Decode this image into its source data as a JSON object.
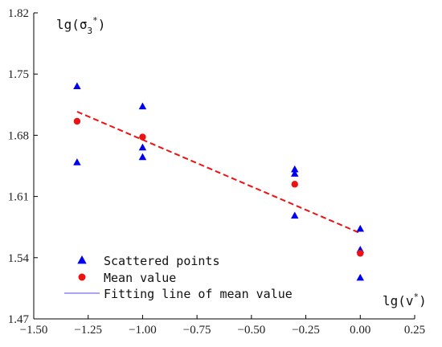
{
  "chart_data": {
    "type": "scatter",
    "xlabel": "lg(v*)",
    "ylabel": "lg(σ₃*)",
    "xlim": [
      -1.5,
      0.25
    ],
    "ylim": [
      1.47,
      1.82
    ],
    "xticks": [
      -1.5,
      -1.25,
      -1.0,
      -0.75,
      -0.5,
      -0.25,
      0.0,
      0.25
    ],
    "xtick_labels": [
      "−1.50",
      "−1.25",
      "−1.00",
      "−0.75",
      "−0.50",
      "−0.25",
      "0.00",
      "0.25"
    ],
    "yticks": [
      1.47,
      1.54,
      1.61,
      1.68,
      1.75,
      1.82
    ],
    "ytick_labels": [
      "1.47",
      "1.54",
      "1.61",
      "1.68",
      "1.75",
      "1.82"
    ],
    "grid": false,
    "legend_position": "bottom-left",
    "series": [
      {
        "name": "Scattered points",
        "marker": "triangle",
        "color": "#0000ee",
        "points": [
          {
            "x": -1.301,
            "y": 1.736
          },
          {
            "x": -1.301,
            "y": 1.649
          },
          {
            "x": -1.0,
            "y": 1.713
          },
          {
            "x": -1.0,
            "y": 1.666
          },
          {
            "x": -1.0,
            "y": 1.655
          },
          {
            "x": -0.301,
            "y": 1.641
          },
          {
            "x": -0.301,
            "y": 1.636
          },
          {
            "x": -0.301,
            "y": 1.588
          },
          {
            "x": 0.0,
            "y": 1.573
          },
          {
            "x": 0.0,
            "y": 1.549
          },
          {
            "x": 0.0,
            "y": 1.517
          }
        ]
      },
      {
        "name": "Mean value",
        "marker": "circle",
        "color": "#ee1111",
        "points": [
          {
            "x": -1.301,
            "y": 1.696
          },
          {
            "x": -1.0,
            "y": 1.678
          },
          {
            "x": -0.301,
            "y": 1.624
          },
          {
            "x": 0.0,
            "y": 1.545
          }
        ]
      },
      {
        "name": "Fitting line of mean value",
        "marker": "line",
        "color": "#ee1111",
        "legend_color": "#7070ee",
        "points": [
          {
            "x": -1.301,
            "y": 1.707
          },
          {
            "x": 0.0,
            "y": 1.568
          }
        ]
      }
    ]
  }
}
